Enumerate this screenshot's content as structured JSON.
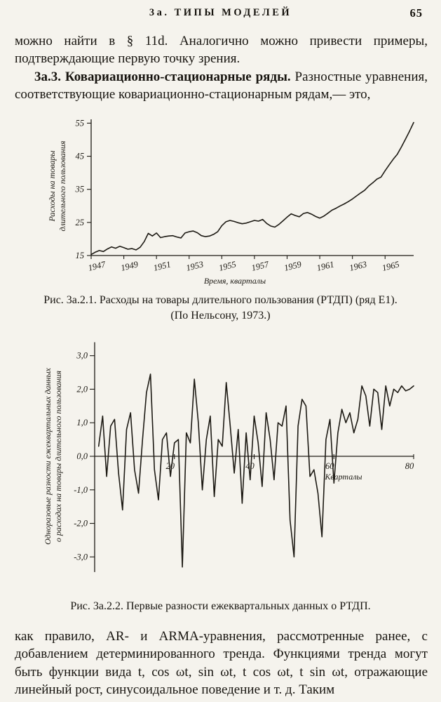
{
  "page": {
    "header": "3а. ТИПЫ МОДЕЛЕЙ",
    "page_number": "65"
  },
  "paragraphs": {
    "p1": "можно найти в § 11d. Аналогично можно привести примеры, подтверждающие первую точку зрения.",
    "p2_bold": "3а.3. Ковариационно-стационарные ряды.",
    "p2_rest": " Разностные уравнения, соответствующие ковариационно-стационарным рядам,— это,",
    "p3": "как правило, AR- и ARMA-уравнения, рассмотренные ранее, с добавлением детерминированного тренда. Функциями тренда могут быть функции вида t, cos ωt, sin ωt, t cos ωt, t sin ωt, отражающие линейный рост, синусоидальное поведение и т. д. Таким"
  },
  "figure1": {
    "caption_line1": "Рис. 3а.2.1. Расходы на товары длительного пользования (РТДП) (ряд Е1).",
    "caption_line2": "(По Нельсону, 1973.)",
    "ylabel_line1": "Расходы на товары",
    "ylabel_line2": "длительного пользования"
  },
  "figure2": {
    "caption": "Рис. 3а.2.2. Первые разности ежеквартальных данных о РТДП.",
    "ylabel_line1": "Одноразовые разности ежеквартальных данных",
    "ylabel_line2": "о расходах на товары длительного пользования"
  },
  "chart_data": [
    {
      "type": "line",
      "title": "Расходы на товары длительного пользования (РТДП), ряд Е1",
      "xlabel": "Время, кварталы",
      "ylabel": "Расходы на товары длительного пользования",
      "x_unit": "quarters, 1947–1966",
      "x_tick_labels": [
        "1947",
        "1949",
        "1951",
        "1953",
        "1955",
        "1957",
        "1959",
        "1961",
        "1963",
        "1965"
      ],
      "y_ticks": [
        15,
        25,
        35,
        45,
        55
      ],
      "y_tick_labels": [
        "15",
        "25",
        "35",
        "45",
        "55"
      ],
      "ylim": [
        15,
        57
      ],
      "grid": false,
      "values": [
        15.3,
        16.0,
        16.5,
        16.2,
        17.0,
        17.6,
        17.2,
        17.8,
        17.4,
        16.9,
        17.1,
        16.7,
        17.5,
        19.2,
        21.7,
        20.9,
        21.8,
        20.4,
        20.7,
        20.9,
        21.0,
        20.6,
        20.3,
        21.8,
        22.2,
        22.4,
        21.9,
        21.0,
        20.7,
        20.9,
        21.4,
        22.2,
        24.0,
        25.2,
        25.6,
        25.3,
        24.9,
        24.6,
        24.8,
        25.2,
        25.6,
        25.4,
        25.9,
        24.7,
        23.9,
        23.6,
        24.4,
        25.5,
        26.6,
        27.6,
        27.1,
        26.7,
        27.7,
        28.0,
        27.5,
        26.8,
        26.3,
        26.9,
        27.8,
        28.7,
        29.3,
        30.0,
        30.6,
        31.3,
        32.1,
        33.0,
        33.9,
        34.7,
        36.0,
        37.0,
        38.1,
        38.7,
        40.6,
        42.4,
        44.1,
        45.6,
        47.8,
        50.2,
        52.6,
        55.2
      ]
    },
    {
      "type": "line",
      "title": "Первые разности ежеквартальных данных о РТДП",
      "xlabel": "Кварталы",
      "ylabel": "Одноразовые разности ежеквартальных данных о расходах на товары длительного пользования",
      "x_ticks": [
        20,
        40,
        60,
        80
      ],
      "x_tick_labels": [
        "20",
        "40",
        "60",
        "80"
      ],
      "y_ticks": [
        3,
        2,
        1,
        0,
        -1,
        -2,
        -3
      ],
      "y_tick_labels": [
        "3,0",
        "2,0",
        "1,0",
        "0,0",
        "-1,0",
        "-2,0",
        "-3,0"
      ],
      "ylim": [
        -3.6,
        3.6
      ],
      "grid": false,
      "values": [
        0.3,
        1.2,
        -0.6,
        0.9,
        1.1,
        -0.5,
        -1.6,
        0.8,
        1.3,
        -0.4,
        -1.1,
        0.5,
        1.9,
        2.45,
        -0.4,
        -1.3,
        0.5,
        0.7,
        -0.6,
        0.4,
        0.5,
        -3.3,
        0.7,
        0.4,
        2.3,
        1.0,
        -1.0,
        0.5,
        1.2,
        -1.2,
        0.5,
        0.3,
        2.2,
        0.9,
        -0.5,
        0.8,
        -1.4,
        0.7,
        -0.7,
        1.2,
        0.4,
        -0.9,
        1.3,
        0.5,
        -0.7,
        1.0,
        0.9,
        1.5,
        -1.9,
        -3.0,
        0.9,
        1.7,
        1.5,
        -0.6,
        -0.4,
        -1.1,
        -2.4,
        0.5,
        1.1,
        -0.8,
        0.7,
        1.4,
        1.0,
        1.3,
        0.7,
        1.1,
        2.1,
        1.8,
        0.9,
        2.0,
        1.9,
        0.8,
        2.1,
        1.5,
        2.0,
        1.9,
        2.1,
        1.95,
        2.0,
        2.1
      ]
    }
  ]
}
